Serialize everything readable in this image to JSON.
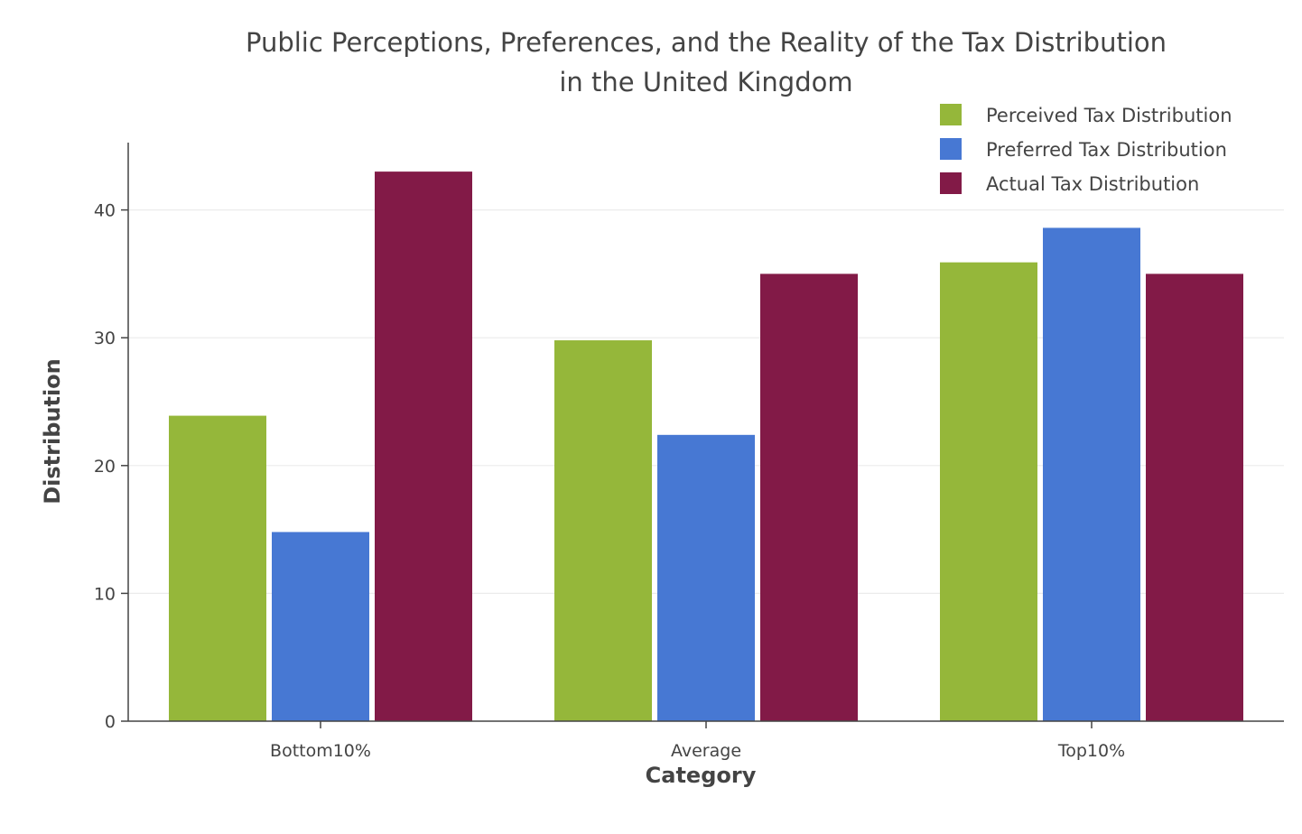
{
  "chart_data": {
    "type": "bar",
    "title_lines": [
      "Public Perceptions, Preferences, and the Reality of the Tax Distribution",
      "in the United Kingdom"
    ],
    "xlabel": "Category",
    "ylabel": "Distribution",
    "categories": [
      "Bottom10%",
      "Average",
      "Top10%"
    ],
    "series": [
      {
        "name": "Perceived Tax Distribution",
        "color": "#95b73a",
        "values": [
          23.9,
          29.8,
          35.9
        ]
      },
      {
        "name": "Preferred Tax Distribution",
        "color": "#4778d3",
        "values": [
          14.8,
          22.4,
          38.6
        ]
      },
      {
        "name": "Actual Tax Distribution",
        "color": "#821a47",
        "values": [
          43.0,
          35.0,
          35.0
        ]
      }
    ],
    "yticks": [
      0,
      10,
      20,
      30,
      40
    ],
    "ylim": [
      0,
      45
    ],
    "grid": true,
    "legend_position": "top-right"
  }
}
